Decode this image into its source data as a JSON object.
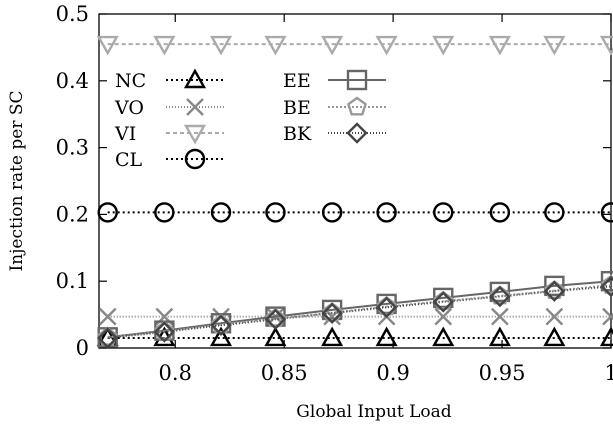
{
  "chart_data": {
    "type": "line",
    "title": "",
    "xlabel": "Global Input Load",
    "ylabel": "Injection rate per SC",
    "xlim": [
      0.765,
      1.0
    ],
    "ylim": [
      0,
      0.5
    ],
    "grid": false,
    "legend_position": "top-left",
    "x": [
      0.769,
      0.795,
      0.821,
      0.846,
      0.872,
      0.897,
      0.923,
      0.949,
      0.974,
      1.0
    ],
    "xticks": [
      0.8,
      0.85,
      0.9,
      0.95,
      1.0
    ],
    "xtick_labels": [
      "0.8",
      "0.85",
      "0.9",
      "0.95",
      "1"
    ],
    "yticks": [
      0,
      0.1,
      0.2,
      0.3,
      0.4,
      0.5
    ],
    "ytick_labels": [
      "0",
      "0.1",
      "0.2",
      "0.3",
      "0.4",
      "0.5"
    ],
    "series": [
      {
        "name": "NC",
        "marker": "triangle-up-icon",
        "color": "#000000",
        "dash": "2,3",
        "values": [
          0.015,
          0.015,
          0.015,
          0.015,
          0.015,
          0.015,
          0.015,
          0.015,
          0.015,
          0.015
        ]
      },
      {
        "name": "VO",
        "marker": "x-cross-icon",
        "color": "#888888",
        "dash": "1,2",
        "values": [
          0.047,
          0.047,
          0.047,
          0.047,
          0.047,
          0.047,
          0.047,
          0.047,
          0.047,
          0.047
        ]
      },
      {
        "name": "VI",
        "marker": "triangle-down-icon",
        "color": "#aaaaaa",
        "dash": "4,3",
        "values": [
          0.455,
          0.455,
          0.455,
          0.455,
          0.455,
          0.455,
          0.455,
          0.455,
          0.455,
          0.455
        ]
      },
      {
        "name": "CL",
        "marker": "circle-icon",
        "color": "#000000",
        "dash": "2,3",
        "values": [
          0.203,
          0.203,
          0.203,
          0.203,
          0.203,
          0.203,
          0.203,
          0.203,
          0.203,
          0.203
        ]
      },
      {
        "name": "EE",
        "marker": "square-icon",
        "color": "#666666",
        "dash": "",
        "values": [
          0.016,
          0.026,
          0.037,
          0.047,
          0.057,
          0.066,
          0.075,
          0.084,
          0.093,
          0.1
        ]
      },
      {
        "name": "BE",
        "marker": "pentagon-icon",
        "color": "#999999",
        "dash": "2,2",
        "values": [
          0.016,
          0.025,
          0.035,
          0.044,
          0.053,
          0.062,
          0.07,
          0.078,
          0.086,
          0.094
        ]
      },
      {
        "name": "BK",
        "marker": "diamond-icon",
        "color": "#444444",
        "dash": "1,2",
        "values": [
          0.015,
          0.024,
          0.034,
          0.043,
          0.052,
          0.061,
          0.069,
          0.077,
          0.085,
          0.092
        ]
      }
    ]
  }
}
